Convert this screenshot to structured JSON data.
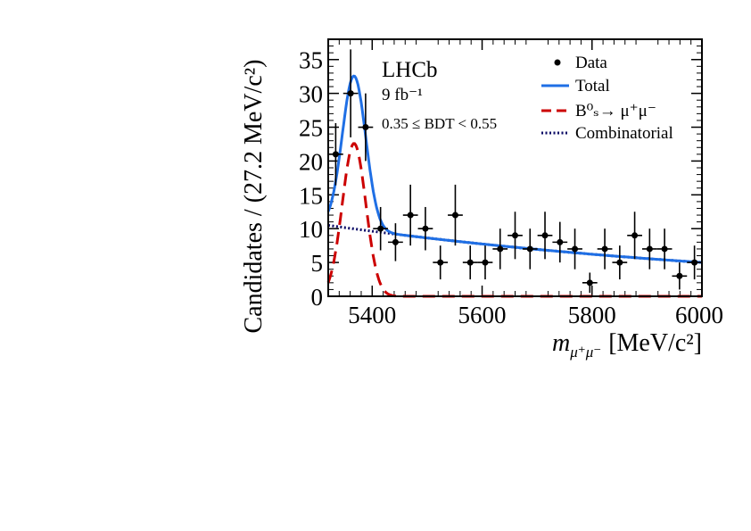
{
  "chart_data": {
    "type": "scatter",
    "xlabel": {
      "main": "m",
      "sub": "μ⁺μ⁻",
      "unit": "[MeV/c²]"
    },
    "ylabel": "Candidates / (27.2 MeV/c²)",
    "xlim": [
      5320,
      6000
    ],
    "ylim": [
      0,
      38
    ],
    "x_ticks": [
      5400,
      5600,
      5800,
      6000
    ],
    "y_ticks": [
      0,
      5,
      10,
      15,
      20,
      25,
      30,
      35
    ],
    "annotations": {
      "experiment": "LHCb",
      "luminosity": "9 fb⁻¹",
      "selection": "0.35 ≤ BDT < 0.55"
    },
    "legend": {
      "placement": "top-right",
      "entries": [
        {
          "label": "Data",
          "style": "marker",
          "color": "#000000"
        },
        {
          "label": "Total",
          "style": "solid",
          "color": "#1f6fe5"
        },
        {
          "label": "B⁰ₛ→ μ⁺μ⁻",
          "style": "dashed",
          "color": "#cc0000"
        },
        {
          "label": "Combinatorial",
          "style": "dotted",
          "color": "#0a0a66"
        }
      ]
    },
    "bin_half_width": 13.6,
    "data_points": [
      {
        "x": 5333.6,
        "y": 21,
        "err": 4.6
      },
      {
        "x": 5360.8,
        "y": 30,
        "err": 6.5
      },
      {
        "x": 5388.0,
        "y": 25,
        "err": 5.0
      },
      {
        "x": 5415.2,
        "y": 10,
        "err": 3.2
      },
      {
        "x": 5442.4,
        "y": 8,
        "err": 2.8
      },
      {
        "x": 5469.6,
        "y": 12,
        "err": 4.5
      },
      {
        "x": 5496.8,
        "y": 10,
        "err": 3.2
      },
      {
        "x": 5524.0,
        "y": 5,
        "err": 2.5
      },
      {
        "x": 5551.2,
        "y": 12,
        "err": 4.5
      },
      {
        "x": 5578.4,
        "y": 5,
        "err": 2.5
      },
      {
        "x": 5605.6,
        "y": 5,
        "err": 2.5
      },
      {
        "x": 5632.8,
        "y": 7,
        "err": 3.0
      },
      {
        "x": 5660.0,
        "y": 9,
        "err": 3.5
      },
      {
        "x": 5687.2,
        "y": 7,
        "err": 3.0
      },
      {
        "x": 5714.4,
        "y": 9,
        "err": 3.5
      },
      {
        "x": 5741.6,
        "y": 8,
        "err": 3.0
      },
      {
        "x": 5768.8,
        "y": 7,
        "err": 3.0
      },
      {
        "x": 5796.0,
        "y": 2,
        "err": 1.5
      },
      {
        "x": 5823.2,
        "y": 7,
        "err": 3.0
      },
      {
        "x": 5850.4,
        "y": 5,
        "err": 2.5
      },
      {
        "x": 5877.6,
        "y": 9,
        "err": 3.5
      },
      {
        "x": 5904.8,
        "y": 7,
        "err": 3.0
      },
      {
        "x": 5932.0,
        "y": 7,
        "err": 3.0
      },
      {
        "x": 5959.2,
        "y": 3,
        "err": 2.0
      },
      {
        "x": 5986.4,
        "y": 5,
        "err": 2.5
      }
    ],
    "model": {
      "combinatorial": {
        "y_at_5320": 10.5,
        "y_at_6000": 5.0
      },
      "signal": {
        "mean": 5367,
        "sigma": 21.4,
        "amplitude": 22.6
      }
    }
  }
}
